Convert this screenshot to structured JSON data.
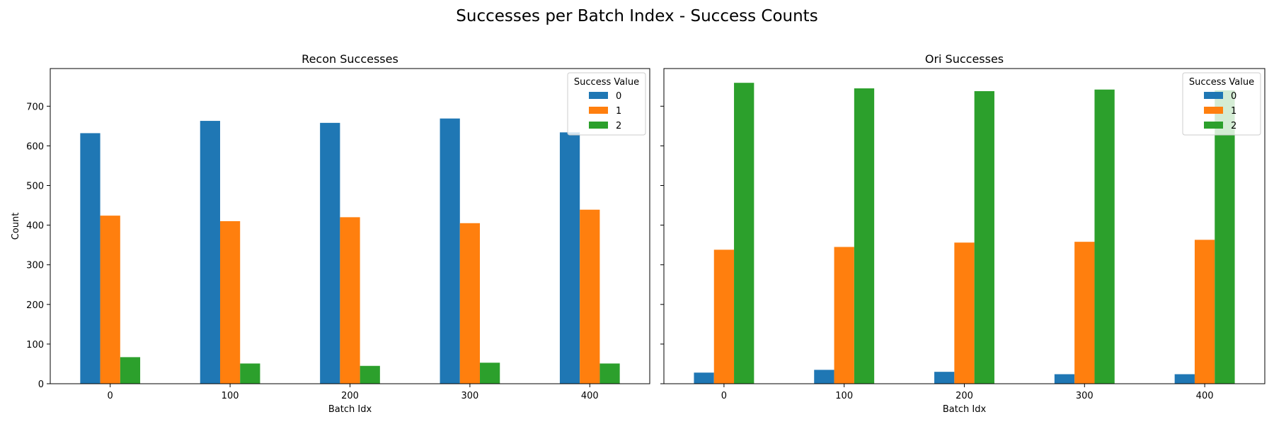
{
  "figure": {
    "suptitle": "Successes per Batch Index - Success Counts"
  },
  "chart_data": [
    {
      "type": "bar",
      "title": "Recon Successes",
      "xlabel": "Batch Idx",
      "ylabel": "Count",
      "categories": [
        "0",
        "100",
        "200",
        "300",
        "400"
      ],
      "ylim": [
        0,
        795
      ],
      "yticks": [
        0,
        100,
        200,
        300,
        400,
        500,
        600,
        700
      ],
      "grid": false,
      "legend": {
        "title": "Success Value",
        "placement": "top-right"
      },
      "series": [
        {
          "name": "0",
          "color": "#1f77b4",
          "values": [
            632,
            663,
            658,
            669,
            634
          ]
        },
        {
          "name": "1",
          "color": "#ff7f0e",
          "values": [
            424,
            410,
            420,
            405,
            439
          ]
        },
        {
          "name": "2",
          "color": "#2ca02c",
          "values": [
            67,
            51,
            45,
            53,
            51
          ]
        }
      ]
    },
    {
      "type": "bar",
      "title": "Ori Successes",
      "xlabel": "Batch Idx",
      "ylabel": "",
      "categories": [
        "0",
        "100",
        "200",
        "300",
        "400"
      ],
      "ylim": [
        0,
        795
      ],
      "yticks": [
        0,
        100,
        200,
        300,
        400,
        500,
        600,
        700
      ],
      "grid": false,
      "legend": {
        "title": "Success Value",
        "placement": "top-right"
      },
      "series": [
        {
          "name": "0",
          "color": "#1f77b4",
          "values": [
            28,
            35,
            30,
            24,
            24
          ]
        },
        {
          "name": "1",
          "color": "#ff7f0e",
          "values": [
            338,
            345,
            356,
            358,
            363
          ]
        },
        {
          "name": "2",
          "color": "#2ca02c",
          "values": [
            759,
            745,
            738,
            742,
            740
          ]
        }
      ]
    }
  ]
}
